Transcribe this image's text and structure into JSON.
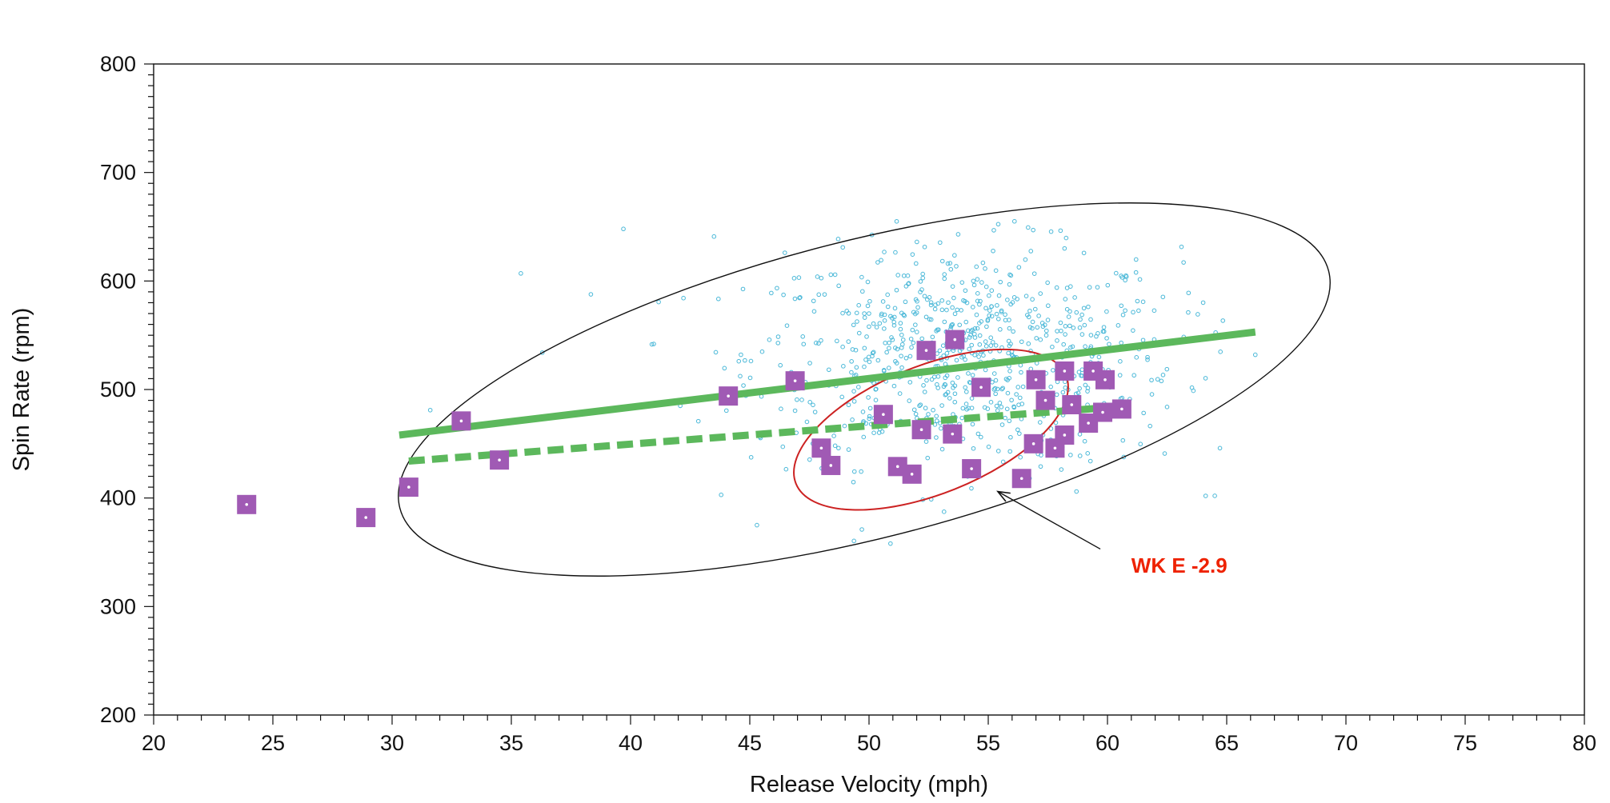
{
  "chart_data": {
    "type": "scatter",
    "title": "",
    "xlabel": "Release Velocity (mph)",
    "ylabel": "Spin Rate (rpm)",
    "xlim": [
      20,
      80
    ],
    "ylim": [
      200,
      800
    ],
    "x_ticks": [
      20,
      25,
      30,
      35,
      40,
      45,
      50,
      55,
      60,
      65,
      70,
      75,
      80
    ],
    "y_ticks": [
      200,
      300,
      400,
      500,
      600,
      700,
      800
    ],
    "grid": false,
    "colors": {
      "population": "#4ab8d8",
      "highlight": "#a05ab4",
      "highlight_dot": "#ffffff",
      "trend": "#5cb85c",
      "population_ellipse": "#111111",
      "player_ellipse": "#cc2222",
      "annotation": "#ee2200"
    },
    "series": [
      {
        "name": "population",
        "marker": "small-open-circle",
        "cloud": {
          "seed": 12345,
          "count": 800,
          "center_x": 54,
          "center_y": 530,
          "sd_x": 4.5,
          "sd_y": 50,
          "x_range": [
            36,
            66
          ],
          "y_range": [
            360,
            660
          ]
        },
        "points": [
          {
            "x": 39.7,
            "y": 648
          },
          {
            "x": 35.4,
            "y": 607
          },
          {
            "x": 36.3,
            "y": 534
          },
          {
            "x": 31.6,
            "y": 481
          },
          {
            "x": 43.5,
            "y": 641
          },
          {
            "x": 45.3,
            "y": 375
          },
          {
            "x": 49.7,
            "y": 371
          },
          {
            "x": 50.9,
            "y": 358
          },
          {
            "x": 64.5,
            "y": 402
          },
          {
            "x": 56.1,
            "y": 655
          },
          {
            "x": 63.4,
            "y": 589
          },
          {
            "x": 66.2,
            "y": 532
          },
          {
            "x": 62.4,
            "y": 441
          },
          {
            "x": 58.7,
            "y": 406
          },
          {
            "x": 48.1,
            "y": 447
          },
          {
            "x": 52.4,
            "y": 452
          },
          {
            "x": 54.9,
            "y": 575
          },
          {
            "x": 58.2,
            "y": 630
          },
          {
            "x": 48.9,
            "y": 631
          }
        ]
      },
      {
        "name": "highlighted player",
        "marker": "filled-square",
        "points": [
          {
            "x": 23.9,
            "y": 394
          },
          {
            "x": 28.9,
            "y": 382
          },
          {
            "x": 30.7,
            "y": 410
          },
          {
            "x": 32.9,
            "y": 471
          },
          {
            "x": 34.5,
            "y": 435
          },
          {
            "x": 44.1,
            "y": 494
          },
          {
            "x": 46.9,
            "y": 508
          },
          {
            "x": 48.0,
            "y": 446
          },
          {
            "x": 48.4,
            "y": 430
          },
          {
            "x": 50.6,
            "y": 477
          },
          {
            "x": 51.2,
            "y": 429
          },
          {
            "x": 51.8,
            "y": 422
          },
          {
            "x": 52.2,
            "y": 463
          },
          {
            "x": 52.4,
            "y": 536
          },
          {
            "x": 53.5,
            "y": 459
          },
          {
            "x": 53.6,
            "y": 546
          },
          {
            "x": 54.3,
            "y": 427
          },
          {
            "x": 54.7,
            "y": 502
          },
          {
            "x": 56.4,
            "y": 418
          },
          {
            "x": 56.9,
            "y": 450
          },
          {
            "x": 57.0,
            "y": 509
          },
          {
            "x": 57.4,
            "y": 490
          },
          {
            "x": 57.8,
            "y": 446
          },
          {
            "x": 58.2,
            "y": 458
          },
          {
            "x": 58.2,
            "y": 517
          },
          {
            "x": 58.5,
            "y": 486
          },
          {
            "x": 59.2,
            "y": 469
          },
          {
            "x": 59.4,
            "y": 517
          },
          {
            "x": 59.8,
            "y": 479
          },
          {
            "x": 59.9,
            "y": 509
          },
          {
            "x": 60.6,
            "y": 482
          }
        ]
      }
    ],
    "lines": [
      {
        "name": "population trend",
        "style": "solid",
        "x": [
          30.3,
          66.2
        ],
        "y": [
          458,
          553
        ]
      },
      {
        "name": "player trend",
        "style": "dashed",
        "x": [
          30.7,
          60.4
        ],
        "y": [
          434,
          484
        ]
      }
    ],
    "ellipses": [
      {
        "name": "population ellipse",
        "color": "population_ellipse",
        "center": [
          49.8,
          500
        ],
        "semi_axis_x": 20.1,
        "semi_axis_y": 137,
        "rotation": -0.25
      },
      {
        "name": "player ellipse",
        "color": "player_ellipse",
        "center": [
          52.6,
          463
        ],
        "semi_axis_x": 6.1,
        "semi_axis_y": 59,
        "rotation": -0.38
      }
    ],
    "annotations": [
      {
        "text": "WK E -2.9",
        "position": [
          61.0,
          338
        ],
        "arrow_tail": [
          59.7,
          353
        ],
        "arrow_head": [
          55.4,
          406
        ]
      }
    ]
  }
}
